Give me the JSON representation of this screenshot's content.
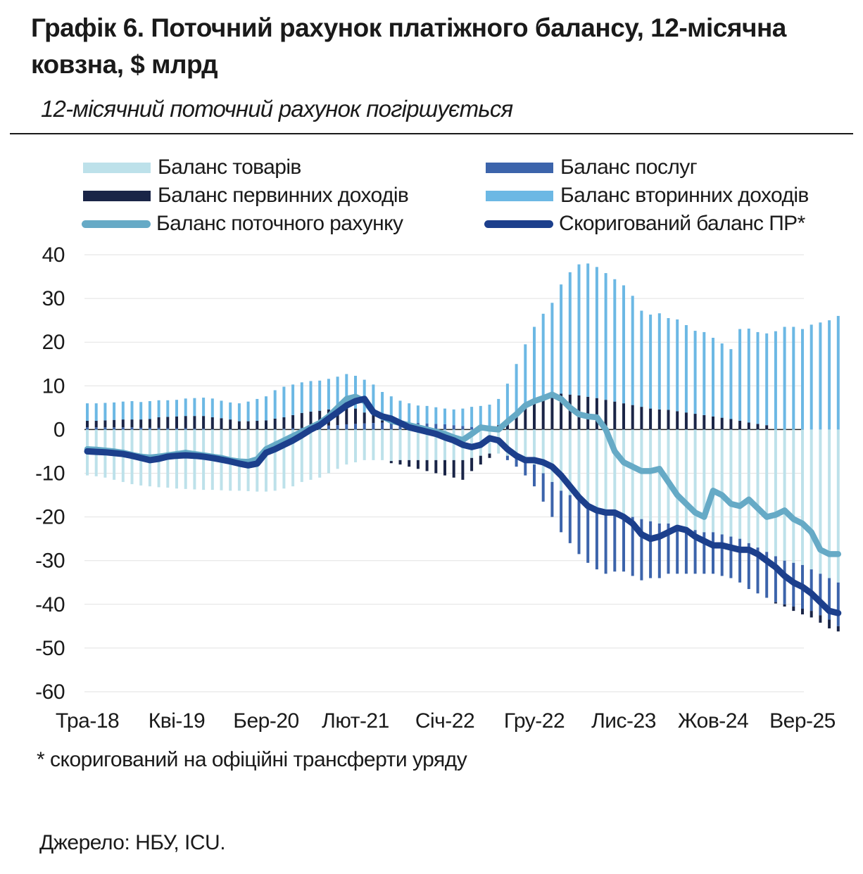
{
  "header": {
    "title": "Графік 6. Поточний рахунок платіжного балансу, 12-місячна ковзна, $ млрд",
    "subtitle": "12-місячний поточний рахунок погіршується"
  },
  "footnote": "* скоригований на офіційні трансферти уряду",
  "source": "Джерело: НБУ, ICU.",
  "colors": {
    "goods": "#bde1ea",
    "services": "#3c64ab",
    "primary": "#1a2547",
    "secondary": "#6cb8e4",
    "current_account": "#66aac6",
    "adjusted": "#1c3f8c"
  },
  "legend": [
    {
      "key": "goods",
      "label": "Баланс товарів",
      "kind": "bar"
    },
    {
      "key": "services",
      "label": "Баланс послуг",
      "kind": "bar"
    },
    {
      "key": "primary",
      "label": "Баланс первинних доходів",
      "kind": "bar"
    },
    {
      "key": "secondary",
      "label": "Баланс вторинних доходів",
      "kind": "bar"
    },
    {
      "key": "current_account",
      "label": "Баланс поточного рахунку",
      "kind": "line"
    },
    {
      "key": "adjusted",
      "label": "Скоригований баланс ПР*",
      "kind": "line"
    }
  ],
  "chart_data": {
    "type": "bar",
    "title": "Поточний рахунок платіжного балансу, 12-місячна ковзна, $ млрд",
    "ylim": [
      -60,
      40
    ],
    "yticks": [
      40,
      30,
      20,
      10,
      0,
      -10,
      -20,
      -30,
      -40,
      -50,
      -60
    ],
    "x_tick_labels": [
      {
        "i": 0,
        "label": "Тра-18"
      },
      {
        "i": 10,
        "label": "Кві-19"
      },
      {
        "i": 20,
        "label": "Бер-20"
      },
      {
        "i": 30,
        "label": "Лют-21"
      },
      {
        "i": 40,
        "label": "Січ-22"
      },
      {
        "i": 50,
        "label": "Гру-22"
      },
      {
        "i": 60,
        "label": "Лис-23"
      },
      {
        "i": 70,
        "label": "Жов-24"
      },
      {
        "i": 80,
        "label": "Вер-25"
      }
    ],
    "n_months": 85,
    "stacked_series": [
      {
        "key": "goods",
        "name": "Баланс товарів",
        "values": [
          -10.5,
          -10.7,
          -11.0,
          -11.5,
          -12.0,
          -12.5,
          -12.8,
          -13.0,
          -13.2,
          -13.3,
          -13.5,
          -13.6,
          -13.7,
          -13.8,
          -13.8,
          -13.9,
          -14.0,
          -14.0,
          -14.1,
          -14.2,
          -14.2,
          -14.0,
          -13.5,
          -13.0,
          -12.0,
          -11.5,
          -11.0,
          -10.0,
          -9.0,
          -8.0,
          -7.5,
          -7.0,
          -7.0,
          -7.0,
          -7.2,
          -7.0,
          -7.0,
          -7.0,
          -7.0,
          -7.0,
          -7.0,
          -7.0,
          -7.0,
          -6.5,
          -6.0,
          -5.5,
          -5.5,
          -6.0,
          -6.5,
          -7.0,
          -8.0,
          -10.0,
          -12.0,
          -14.0,
          -15.0,
          -16.0,
          -17.0,
          -18.0,
          -19.0,
          -19.0,
          -19.5,
          -20.0,
          -20.5,
          -21.0,
          -21.5,
          -21.5,
          -22.0,
          -22.5,
          -23.0,
          -23.5,
          -23.5,
          -24.0,
          -24.5,
          -25.0,
          -26.0,
          -27.0,
          -28.0,
          -29.0,
          -30.0,
          -30.5,
          -31.0,
          -32.0,
          -33.0,
          -34.0,
          -35.0
        ]
      },
      {
        "key": "services",
        "name": "Баланс послуг",
        "values": [
          0.5,
          0.5,
          0.5,
          0.5,
          0.5,
          0.5,
          0.4,
          0.4,
          0.4,
          0.3,
          0.3,
          0.3,
          0.2,
          0.2,
          0.1,
          0.1,
          0.1,
          0.0,
          0.0,
          0.0,
          0.0,
          0.1,
          0.2,
          0.3,
          0.4,
          0.6,
          0.7,
          0.9,
          1.0,
          1.2,
          1.3,
          1.4,
          1.5,
          1.6,
          1.6,
          1.6,
          1.5,
          1.5,
          1.4,
          1.3,
          1.2,
          1.0,
          0.8,
          0.6,
          0.4,
          0.2,
          0.0,
          -1.0,
          -2.0,
          -3.5,
          -5.0,
          -6.5,
          -8.0,
          -9.5,
          -11.0,
          -12.5,
          -13.5,
          -14.0,
          -14.0,
          -13.5,
          -13.0,
          -13.5,
          -14.0,
          -13.0,
          -12.5,
          -11.5,
          -11.0,
          -10.5,
          -10.0,
          -9.5,
          -9.5,
          -9.5,
          -9.5,
          -10.0,
          -10.5,
          -10.5,
          -10.5,
          -10.5,
          -10.0,
          -10.0,
          -10.0,
          -9.5,
          -9.5,
          -9.5,
          -10.0
        ]
      },
      {
        "key": "primary",
        "name": "Баланс первинних доходів",
        "values": [
          1.5,
          1.5,
          1.6,
          1.7,
          1.8,
          1.8,
          1.9,
          2.0,
          2.4,
          2.6,
          2.7,
          2.8,
          2.9,
          2.9,
          2.7,
          2.5,
          2.2,
          1.9,
          1.9,
          2.0,
          2.1,
          2.4,
          2.6,
          3.0,
          3.4,
          3.5,
          3.6,
          3.7,
          3.9,
          4.0,
          3.5,
          2.5,
          1.8,
          0.5,
          -0.5,
          -1.0,
          -1.5,
          -2.0,
          -2.5,
          -3.0,
          -3.5,
          -4.0,
          -4.5,
          -3.0,
          -2.0,
          -1.0,
          1.0,
          2.5,
          4.0,
          5.5,
          6.5,
          7.5,
          8.0,
          8.2,
          8.0,
          7.8,
          7.5,
          7.2,
          6.8,
          6.4,
          6.0,
          5.6,
          5.2,
          4.8,
          4.6,
          4.5,
          4.2,
          3.9,
          3.6,
          3.3,
          3.0,
          2.7,
          2.4,
          2.0,
          1.6,
          1.3,
          1.0,
          -0.3,
          -0.5,
          -1.0,
          -1.3,
          -1.5,
          -1.7,
          -2.0,
          -1.2
        ]
      },
      {
        "key": "secondary",
        "name": "Баланс вторинних доходів",
        "values": [
          4.0,
          4.0,
          4.0,
          4.0,
          4.1,
          4.2,
          4.0,
          4.1,
          3.9,
          3.8,
          3.8,
          4.0,
          4.1,
          4.2,
          4.3,
          4.0,
          3.9,
          4.1,
          4.5,
          5.0,
          5.5,
          6.5,
          7.0,
          7.0,
          7.0,
          7.0,
          6.9,
          7.0,
          7.2,
          7.5,
          7.5,
          7.5,
          7.0,
          6.5,
          6.0,
          5.0,
          4.5,
          4.0,
          4.0,
          3.8,
          3.6,
          3.6,
          4.0,
          4.6,
          5.0,
          5.5,
          6.0,
          8.0,
          11.0,
          14.0,
          17.0,
          19.0,
          21.0,
          25.0,
          28.0,
          30.0,
          30.5,
          30.0,
          29.0,
          28.0,
          27.0,
          25.0,
          22.0,
          21.5,
          22.0,
          21.0,
          21.0,
          20.0,
          19.0,
          19.0,
          18.0,
          17.0,
          16.0,
          21.0,
          21.5,
          21.0,
          21.0,
          22.5,
          23.5,
          23.5,
          23.0,
          24.0,
          24.5,
          25.0,
          26.0
        ]
      }
    ],
    "lines": [
      {
        "key": "current_account",
        "name": "Баланс поточного рахунку",
        "values": [
          -4.5,
          -4.6,
          -4.8,
          -5.0,
          -5.3,
          -5.8,
          -6.2,
          -6.4,
          -6.2,
          -5.9,
          -5.6,
          -5.3,
          -5.6,
          -5.9,
          -6.2,
          -6.5,
          -7.0,
          -7.3,
          -7.4,
          -6.8,
          -4.5,
          -3.5,
          -2.5,
          -1.5,
          -0.5,
          0.5,
          1.5,
          3.0,
          5.0,
          7.0,
          7.5,
          6.5,
          4.0,
          3.0,
          2.0,
          1.5,
          1.0,
          0.5,
          0.0,
          -0.5,
          -1.0,
          -1.8,
          -2.4,
          -1.0,
          0.5,
          0.2,
          0.0,
          1.8,
          3.5,
          5.5,
          6.5,
          7.2,
          8.0,
          7.0,
          5.0,
          3.5,
          3.0,
          2.8,
          0.0,
          -5.0,
          -7.5,
          -8.5,
          -9.5,
          -9.5,
          -9.0,
          -12.0,
          -15.0,
          -17.0,
          -19.0,
          -20.0,
          -14.0,
          -15.0,
          -17.0,
          -17.5,
          -16.0,
          -18.0,
          -20.0,
          -19.5,
          -18.5,
          -20.5,
          -21.5,
          -23.5,
          -27.5,
          -28.5,
          -28.5
        ]
      },
      {
        "key": "adjusted",
        "name": "Скоригований баланс ПР*",
        "values": [
          -5.0,
          -5.1,
          -5.2,
          -5.4,
          -5.6,
          -6.0,
          -6.5,
          -7.0,
          -6.7,
          -6.2,
          -6.0,
          -5.9,
          -6.0,
          -6.2,
          -6.5,
          -6.9,
          -7.3,
          -7.8,
          -8.2,
          -7.8,
          -5.3,
          -4.5,
          -3.5,
          -2.5,
          -1.3,
          0.0,
          1.0,
          2.5,
          4.0,
          5.5,
          6.5,
          7.0,
          4.0,
          3.0,
          2.5,
          1.5,
          0.5,
          0.0,
          -0.5,
          -1.0,
          -1.8,
          -2.5,
          -3.5,
          -4.0,
          -3.5,
          -2.0,
          -2.5,
          -4.5,
          -6.0,
          -7.0,
          -7.0,
          -7.5,
          -8.5,
          -10.5,
          -13.0,
          -15.5,
          -17.5,
          -18.5,
          -19.0,
          -19.0,
          -20.0,
          -21.5,
          -24.0,
          -25.0,
          -24.5,
          -23.5,
          -22.5,
          -23.0,
          -24.5,
          -25.5,
          -26.5,
          -26.5,
          -27.0,
          -27.5,
          -27.5,
          -28.5,
          -30.0,
          -31.5,
          -33.5,
          -35.0,
          -36.0,
          -37.5,
          -39.5,
          -41.5,
          -42.0
        ]
      }
    ]
  }
}
